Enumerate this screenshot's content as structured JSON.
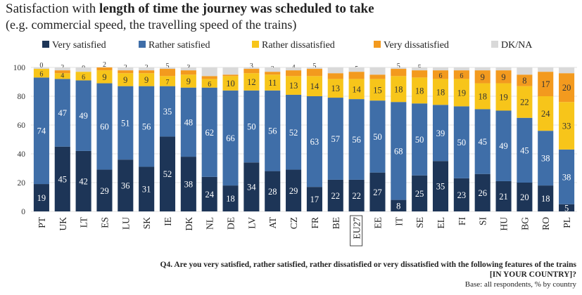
{
  "header": {
    "title_plain": "Satisfaction with ",
    "title_bold": "length of time the journey was scheduled to take",
    "subtitle": "(e.g. commercial speed, the travelling speed of the trains)"
  },
  "footer": {
    "question_line1": "Q4. Are you very satisfied, rather satisfied, rather dissatisfied or very dissatisfied with the following features of the trains",
    "question_line2": "[IN YOUR COUNTRY]?",
    "base": "Base: all respondents, % by country"
  },
  "chart_data": {
    "type": "bar",
    "stacked": true,
    "ylim": [
      0,
      100
    ],
    "yticks": [
      0,
      20,
      40,
      60,
      80,
      100
    ],
    "categories": [
      "PT",
      "UK",
      "LT",
      "ES",
      "LU",
      "SK",
      "IE",
      "DK",
      "NL",
      "DE",
      "LV",
      "AT",
      "CZ",
      "FR",
      "BE",
      "EU27",
      "EE",
      "IT",
      "SE",
      "EL",
      "FI",
      "SI",
      "HU",
      "BG",
      "RO",
      "PL"
    ],
    "highlighted_category": "EU27",
    "series": [
      {
        "name": "Very satisfied",
        "color": "#1d3557",
        "values": [
          19,
          45,
          42,
          29,
          36,
          31,
          52,
          38,
          24,
          18,
          34,
          28,
          29,
          17,
          22,
          22,
          27,
          8,
          25,
          35,
          23,
          26,
          21,
          20,
          18,
          5
        ]
      },
      {
        "name": "Rather satisfied",
        "color": "#3f6ea8",
        "values": [
          74,
          47,
          49,
          60,
          51,
          56,
          35,
          48,
          62,
          66,
          50,
          56,
          52,
          63,
          57,
          56,
          50,
          68,
          50,
          39,
          50,
          45,
          49,
          45,
          38,
          38
        ]
      },
      {
        "name": "Rather dissatisfied",
        "color": "#f7c51a",
        "values": [
          6,
          4,
          6,
          9,
          9,
          9,
          7,
          9,
          6,
          10,
          12,
          11,
          13,
          14,
          13,
          14,
          15,
          18,
          18,
          18,
          19,
          18,
          19,
          22,
          24,
          33
        ]
      },
      {
        "name": "Very dissatisfied",
        "color": "#f39a1e",
        "values": [
          0,
          2,
          0,
          2,
          2,
          2,
          5,
          3,
          2,
          1,
          3,
          2,
          4,
          5,
          4,
          5,
          3,
          5,
          5,
          6,
          6,
          9,
          9,
          8,
          17,
          20
        ]
      },
      {
        "name": "DK/NA",
        "color": "#d9d9d9",
        "values": [
          1,
          2,
          3,
          0,
          2,
          2,
          1,
          2,
          6,
          5,
          1,
          3,
          2,
          1,
          4,
          3,
          5,
          1,
          2,
          2,
          2,
          2,
          2,
          5,
          3,
          4
        ]
      }
    ],
    "value_labels": [
      [
        "19",
        "45",
        "42",
        "29",
        "36",
        "31",
        "52",
        "38",
        "24",
        "18",
        "34",
        "28",
        "29",
        "17",
        "22",
        "22",
        "27",
        "8",
        "25",
        "35",
        "23",
        "26",
        "21",
        "20",
        "18",
        "5"
      ],
      [
        "74",
        "47",
        "49",
        "60",
        "51",
        "56",
        "35",
        "48",
        "62",
        "66",
        "50",
        "56",
        "52",
        "63",
        "57",
        "56",
        "50",
        "68",
        "50",
        "39",
        "50",
        "45",
        "49",
        "45",
        "38",
        "38"
      ],
      [
        "6",
        "4",
        "6",
        "9",
        "9",
        "9",
        "7",
        "9",
        "6",
        "10",
        "12",
        "11",
        "13",
        "14",
        "13",
        "14",
        "15",
        "18",
        "18",
        "18",
        "19",
        "18",
        "19",
        "22",
        "24",
        "33"
      ],
      [
        "0",
        "2",
        "0",
        "2",
        "2",
        "2",
        "5",
        "3",
        "2",
        "1",
        "3",
        "2",
        "4",
        "5",
        "4",
        "5",
        "3",
        "5",
        "5",
        "6",
        "6",
        "9",
        "9",
        "8",
        "17",
        "20"
      ],
      [
        "",
        "",
        "",
        "",
        "",
        "",
        "",
        "",
        "",
        "",
        "",
        "",
        "",
        "",
        "",
        "",
        "",
        "",
        "",
        "",
        "",
        "",
        "",
        "",
        "",
        ""
      ]
    ],
    "xlabel": "",
    "ylabel": "",
    "legend_position": "top"
  }
}
